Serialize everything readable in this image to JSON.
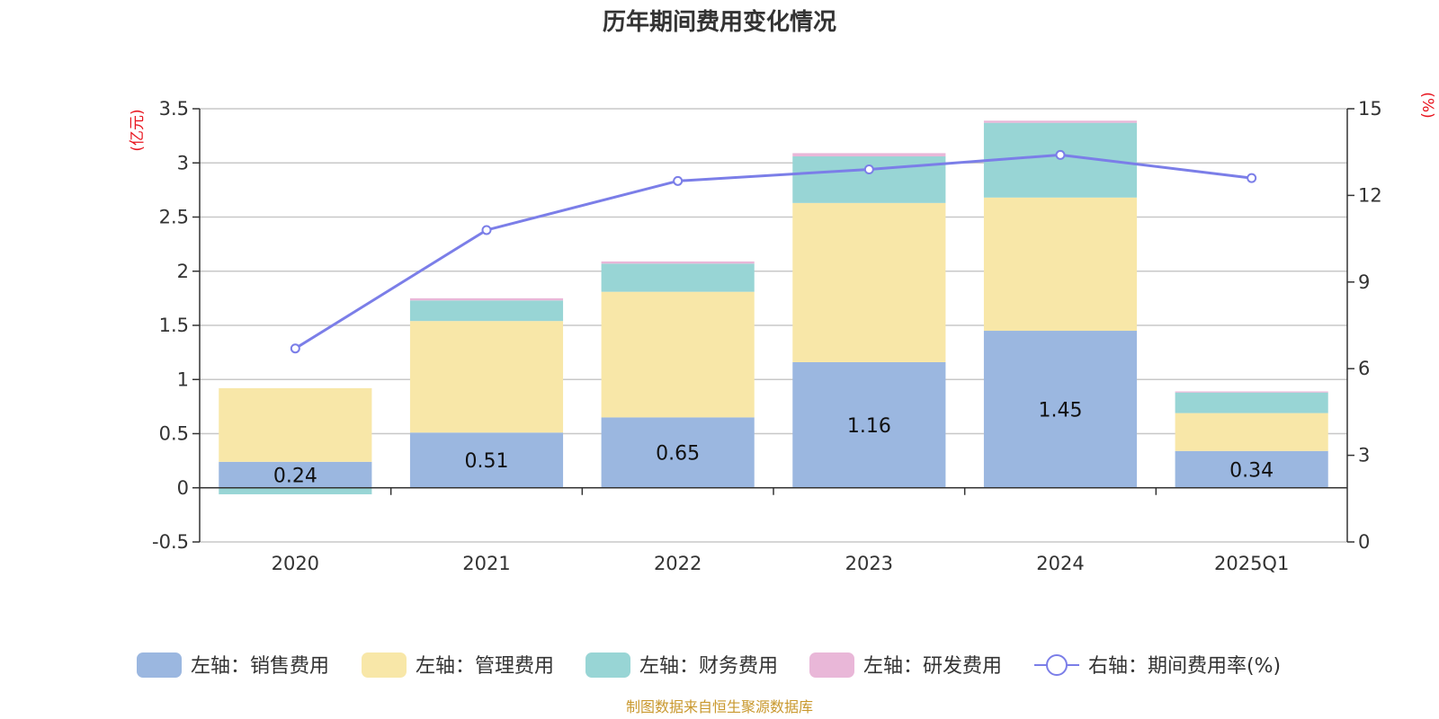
{
  "chart_data": {
    "type": "bar",
    "title": "历年期间费用变化情况",
    "categories": [
      "2020",
      "2021",
      "2022",
      "2023",
      "2024",
      "2025Q1"
    ],
    "left_axis": {
      "unit_label": "(亿元)",
      "ylim": [
        -0.5,
        3.5
      ],
      "ticks": [
        -0.5,
        0,
        0.5,
        1,
        1.5,
        2,
        2.5,
        3,
        3.5
      ],
      "tick_labels": [
        "-0.5",
        "0",
        "0.5",
        "1",
        "1.5",
        "2",
        "2.5",
        "3",
        "3.5"
      ]
    },
    "right_axis": {
      "unit_label": "(%)",
      "ylim": [
        0,
        15
      ],
      "ticks": [
        0,
        3,
        6,
        9,
        12,
        15
      ],
      "tick_labels": [
        "0",
        "3",
        "6",
        "9",
        "12",
        "15"
      ]
    },
    "series": [
      {
        "name": "左轴：销售费用",
        "type": "bar",
        "axis": "left",
        "color": "#9bb7e0",
        "values": [
          0.24,
          0.51,
          0.65,
          1.16,
          1.45,
          0.34
        ],
        "labels": [
          "0.24",
          "0.51",
          "0.65",
          "1.16",
          "1.45",
          "0.34"
        ]
      },
      {
        "name": "左轴：管理费用",
        "type": "bar",
        "axis": "left",
        "color": "#f8e7a8",
        "values": [
          0.68,
          1.03,
          1.16,
          1.47,
          1.23,
          0.35
        ]
      },
      {
        "name": "左轴：财务费用",
        "type": "bar",
        "axis": "left",
        "color": "#98d5d5",
        "values": [
          -0.06,
          0.19,
          0.26,
          0.43,
          0.69,
          0.19
        ]
      },
      {
        "name": "左轴：研发费用",
        "type": "bar",
        "axis": "left",
        "color": "#e9b7d8",
        "values": [
          0.0,
          0.02,
          0.02,
          0.03,
          0.02,
          0.01
        ]
      },
      {
        "name": "右轴：期间费用率(%)",
        "type": "line",
        "axis": "right",
        "color": "#7b7ee8",
        "values": [
          6.7,
          10.8,
          12.5,
          12.9,
          13.4,
          12.6
        ]
      }
    ],
    "legend_position": "bottom",
    "grid": true,
    "source": "制图数据来自恒生聚源数据库"
  }
}
